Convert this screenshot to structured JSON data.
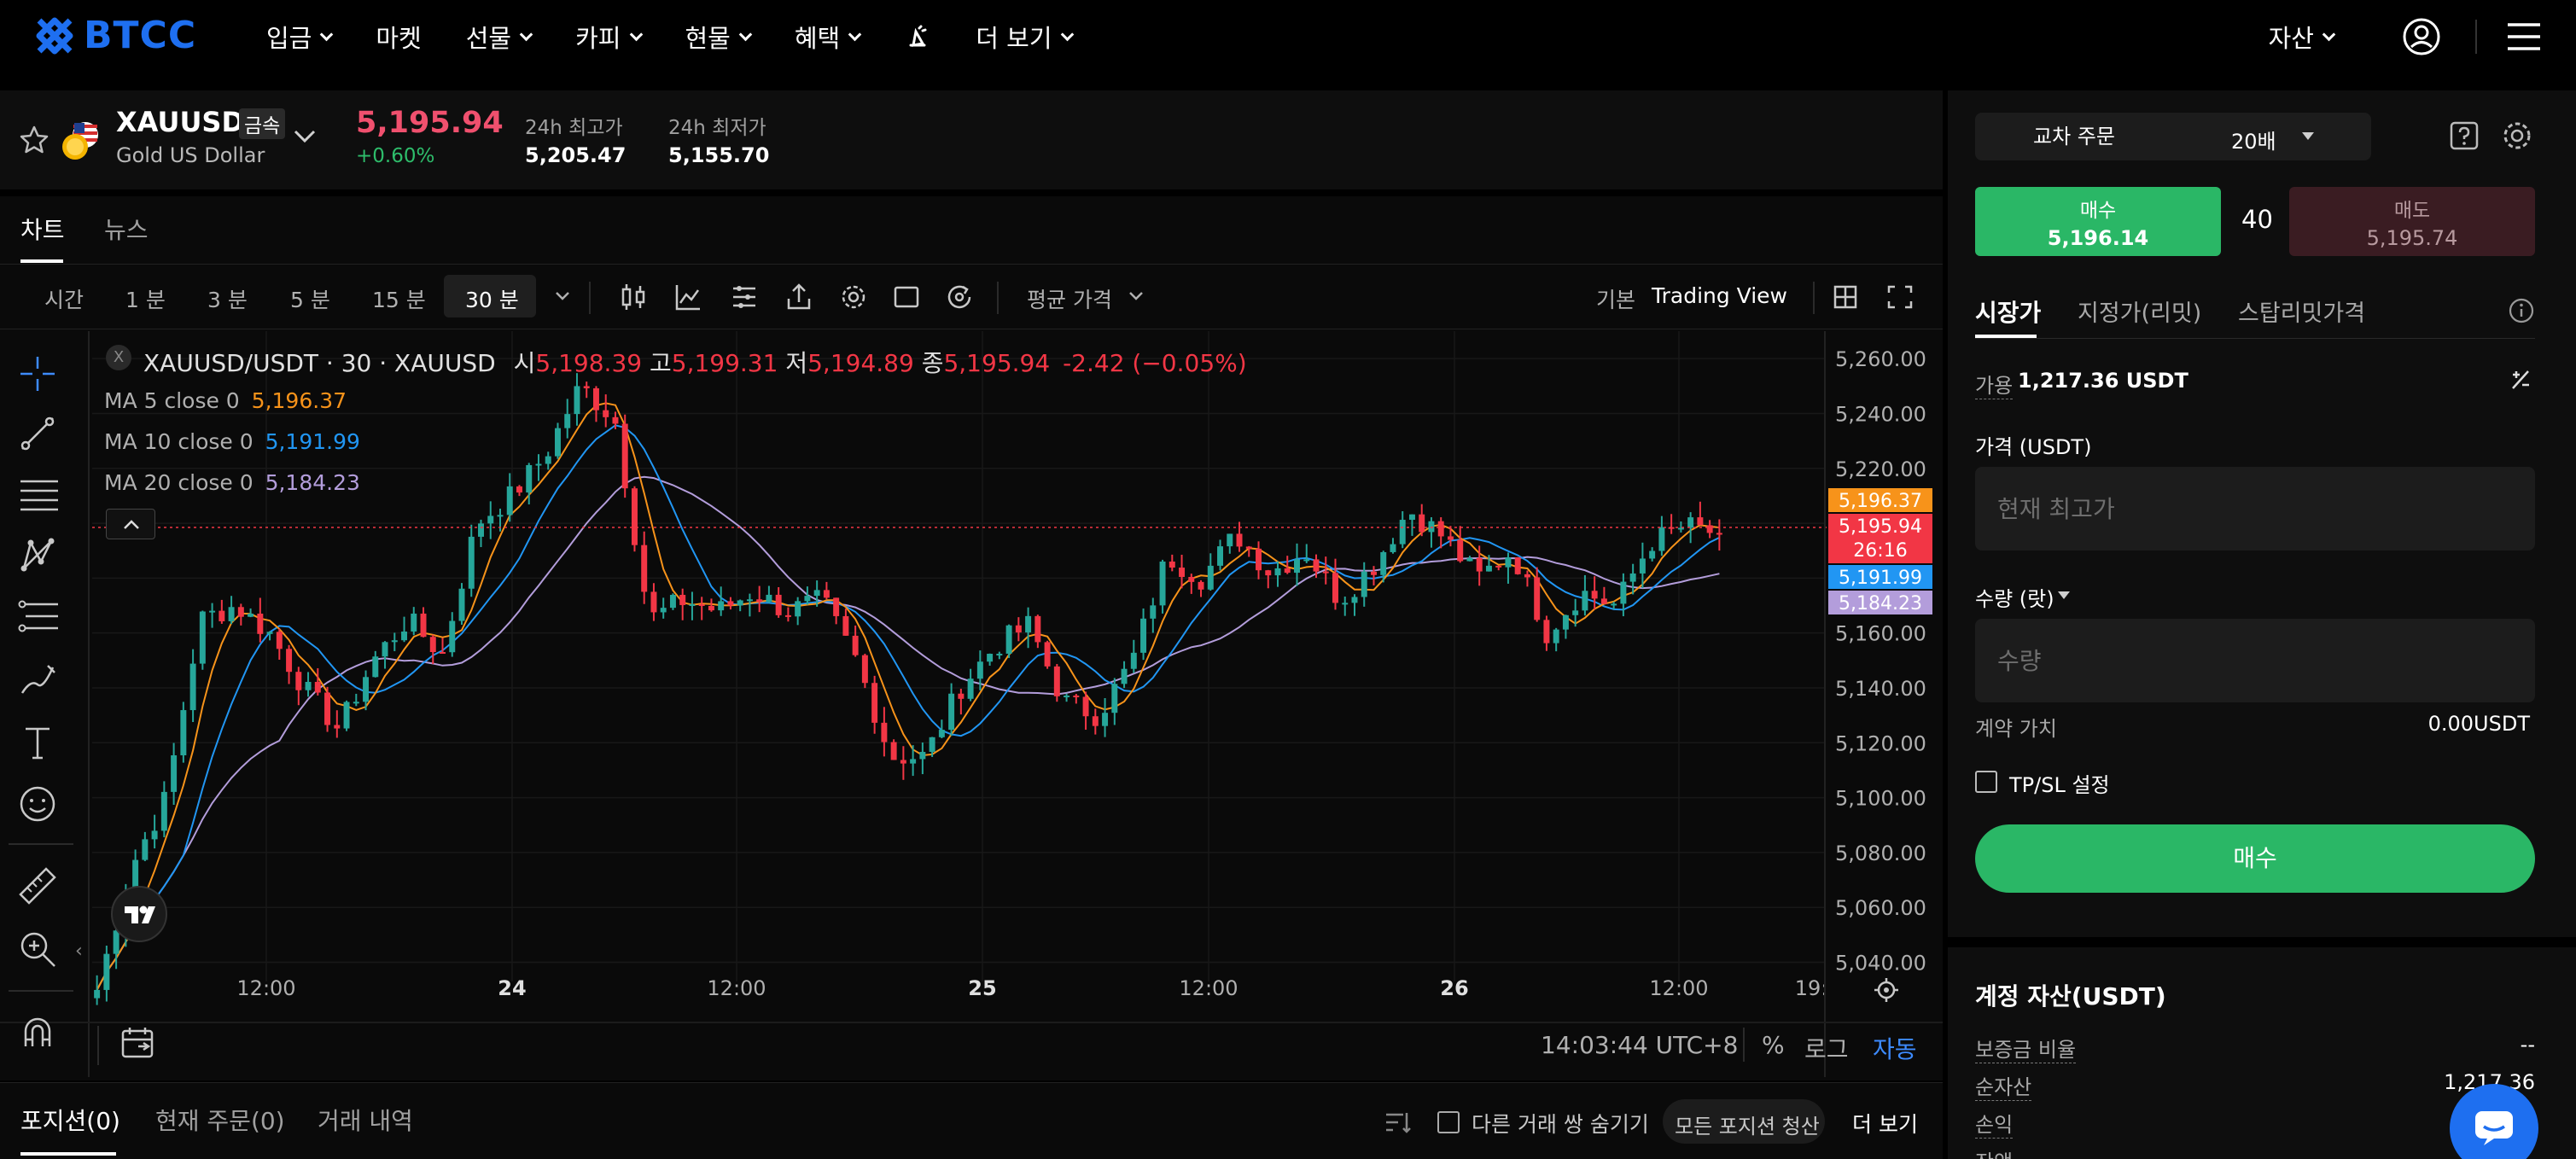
{
  "nav": {
    "logo": "BTCC",
    "items": [
      {
        "label": "입금",
        "dropdown": true
      },
      {
        "label": "마켓",
        "dropdown": false
      },
      {
        "label": "선물",
        "dropdown": true
      },
      {
        "label": "카피",
        "dropdown": true
      },
      {
        "label": "현물",
        "dropdown": true
      },
      {
        "label": "혜택",
        "dropdown": true
      },
      {
        "label": "",
        "icon": "magic-hat-icon",
        "dropdown": false
      },
      {
        "label": "더 보기",
        "dropdown": true
      }
    ],
    "assets_label": "자산"
  },
  "ticker": {
    "symbol": "XAUUSD",
    "tag": "금속",
    "name": "Gold US Dollar",
    "price": "5,195.94",
    "change": "+0.60%",
    "high_label": "24h 최고가",
    "high_value": "5,205.47",
    "low_label": "24h 최저가",
    "low_value": "5,155.70"
  },
  "tabs": {
    "chart": "차트",
    "news": "뉴스"
  },
  "toolbar": {
    "timeframes": [
      "시간",
      "1 분",
      "3 분",
      "5 분",
      "15 분",
      "30 분"
    ],
    "active_timeframe": "30 분",
    "price_type": "평균 가격",
    "view_basic": "기본",
    "view_tv": "Trading View"
  },
  "legend": {
    "title": "XAUUSD/USDT · 30 · XAUUSD",
    "o_label": "시",
    "o": "5,198.39",
    "h_label": "고",
    "h": "5,199.31",
    "l_label": "저",
    "l": "5,194.89",
    "c_label": "종",
    "c": "5,195.94",
    "change": "-2.42 (−0.05%)",
    "ma5_label": "MA 5 close 0",
    "ma5": "5,196.37",
    "ma10_label": "MA 10 close 0",
    "ma10": "5,191.99",
    "ma20_label": "MA 20 close 0",
    "ma20": "5,184.23"
  },
  "chart_data": {
    "type": "line",
    "title": "XAUUSD/USDT · 30 · XAUUSD",
    "xlabel": "",
    "ylabel": "",
    "x_tick_labels": [
      "12:00",
      "24",
      "12:00",
      "25",
      "12:00",
      "26",
      "12:00",
      "19:"
    ],
    "y_ticks": [
      5260,
      5240,
      5220,
      5200,
      5180,
      5160,
      5140,
      5120,
      5100,
      5080,
      5060,
      5040
    ],
    "y_tick_labels": [
      "5,260.00",
      "5,240.00",
      "5,220.00",
      "5,200.00",
      "5,180.00",
      "5,160.00",
      "5,140.00",
      "5,120.00",
      "5,100.00",
      "5,080.00",
      "5,060.00",
      "5,040.00"
    ],
    "ylim": [
      5033,
      5270
    ],
    "price_badges": [
      {
        "label": "5,196.37",
        "value": 5196.37,
        "color": "#f7931a"
      },
      {
        "label": "5,195.94",
        "sub": "26:16",
        "value": 5195.94,
        "color": "#f23645"
      },
      {
        "label": "5,191.99",
        "value": 5191.99,
        "color": "#2196f3"
      },
      {
        "label": "5,184.23",
        "value": 5184.23,
        "color": "#b39ddb"
      }
    ],
    "candle_anchors": [
      5030,
      5075,
      5100,
      5165,
      5170,
      5160,
      5140,
      5125,
      5150,
      5165,
      5152,
      5200,
      5210,
      5225,
      5250,
      5238,
      5165,
      5172,
      5168,
      5175,
      5168,
      5172,
      5150,
      5115,
      5115,
      5140,
      5155,
      5163,
      5135,
      5130,
      5150,
      5188,
      5180,
      5196,
      5182,
      5190,
      5172,
      5185,
      5205,
      5195,
      5180,
      5190,
      5160,
      5175,
      5170,
      5193,
      5199,
      5196
    ],
    "series": [
      {
        "name": "MA 5 close 0",
        "color": "#f7931a"
      },
      {
        "name": "MA 10 close 0",
        "color": "#2196f3"
      },
      {
        "name": "MA 20 close 0",
        "color": "#b39ddb"
      }
    ],
    "grid": true
  },
  "chart_footer": {
    "time": "14:03:44 UTC+8",
    "pct": "%",
    "log": "로그",
    "auto": "자동"
  },
  "positions": {
    "tabs": [
      "포지션(0)",
      "현재 주문(0)",
      "거래 내역"
    ],
    "hide_label": "다른 거래 쌍 숨기기",
    "close_all": "모든 포지션 청산",
    "more": "더 보기"
  },
  "order": {
    "mode": "교차 주문",
    "leverage": "20배",
    "buy_label": "매수",
    "buy_price": "5,196.14",
    "spread": "40",
    "sell_label": "매도",
    "sell_price": "5,195.74",
    "types": [
      "시장가",
      "지정가(리밋)",
      "스탑리밋가격"
    ],
    "avail_label": "가용",
    "avail_value": "1,217.36 USDT",
    "price_label": "가격 (USDT)",
    "price_placeholder": "현재 최고가",
    "qty_label": "수량 (랏)",
    "qty_placeholder": "수량",
    "contract_label": "계약 가치",
    "contract_value": "0.00USDT",
    "tpsl_label": "TP/SL 설정",
    "submit": "매수"
  },
  "account": {
    "title": "계정 자산(USDT)",
    "margin_ratio_label": "보증금 비율",
    "margin_ratio_value": "--",
    "net_label": "순자산",
    "net_value": "1,217.36",
    "pnl_label": "손익",
    "balance_label": "잔액"
  },
  "colors": {
    "up": "#26a69a",
    "down": "#f23645",
    "buy": "#2ab766",
    "brand": "#1e6ff0"
  }
}
